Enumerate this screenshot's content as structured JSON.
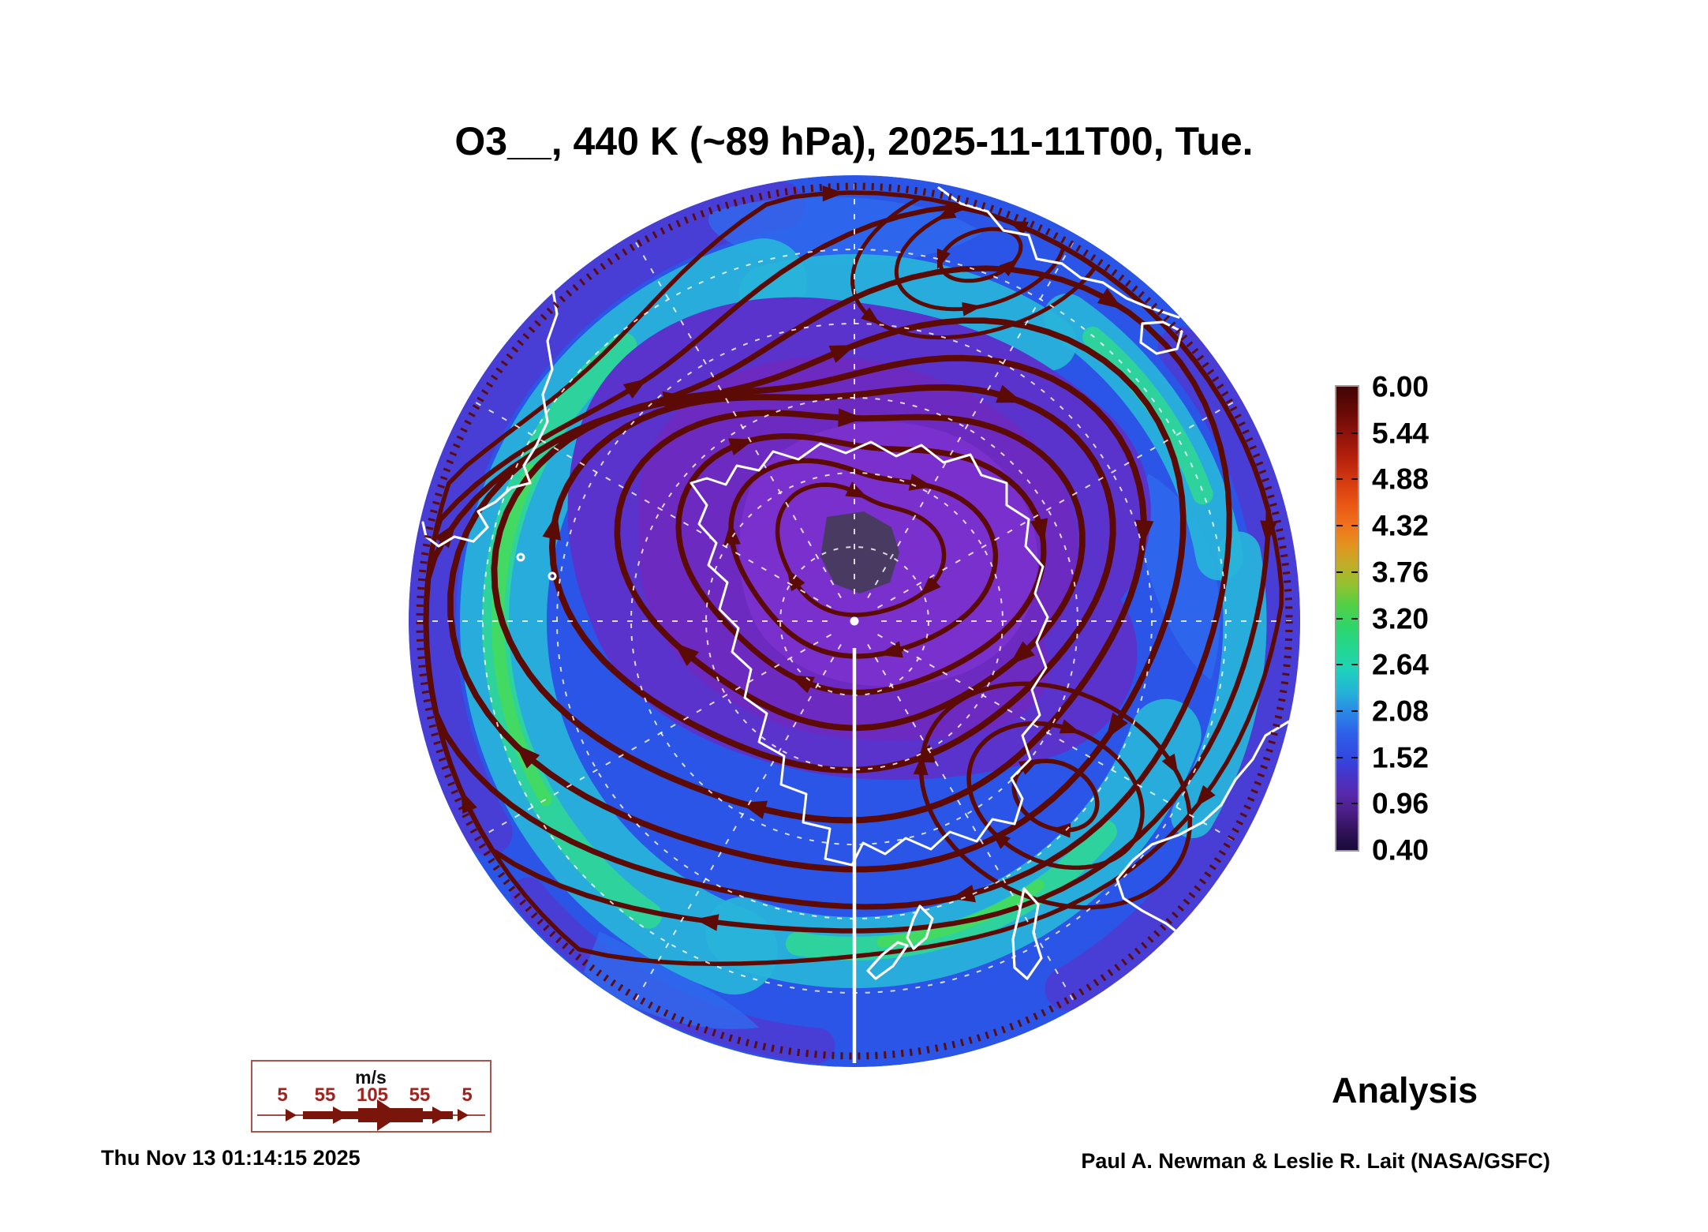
{
  "title": "O3__, 440 K (~89 hPa), 2025-11-11T00, Tue.",
  "colorbar": {
    "ticks": [
      "6.00",
      "5.44",
      "4.88",
      "4.32",
      "3.76",
      "3.20",
      "2.64",
      "2.08",
      "1.52",
      "0.96",
      "0.40"
    ],
    "min": 0.4,
    "max": 6.0,
    "gradient_stops": [
      {
        "p": 0.0,
        "c": "#400404"
      },
      {
        "p": 0.05,
        "c": "#650a06"
      },
      {
        "p": 0.1,
        "c": "#8c120a"
      },
      {
        "p": 0.15,
        "c": "#b2200c"
      },
      {
        "p": 0.2,
        "c": "#d23810"
      },
      {
        "p": 0.25,
        "c": "#e85414"
      },
      {
        "p": 0.3,
        "c": "#ef731c"
      },
      {
        "p": 0.34,
        "c": "#e49220"
      },
      {
        "p": 0.38,
        "c": "#c4ab28"
      },
      {
        "p": 0.43,
        "c": "#90c232"
      },
      {
        "p": 0.47,
        "c": "#52d044"
      },
      {
        "p": 0.52,
        "c": "#2ed56c"
      },
      {
        "p": 0.57,
        "c": "#22d795"
      },
      {
        "p": 0.61,
        "c": "#1fd2ba"
      },
      {
        "p": 0.66,
        "c": "#24b2d8"
      },
      {
        "p": 0.7,
        "c": "#2a8ae6"
      },
      {
        "p": 0.75,
        "c": "#2e5ee8"
      },
      {
        "p": 0.8,
        "c": "#3348e0"
      },
      {
        "p": 0.84,
        "c": "#4634c8"
      },
      {
        "p": 0.88,
        "c": "#5829aa"
      },
      {
        "p": 0.92,
        "c": "#4a1d84"
      },
      {
        "p": 0.96,
        "c": "#31115a"
      },
      {
        "p": 1.0,
        "c": "#190b38"
      }
    ]
  },
  "wind_legend": {
    "units": "m/s",
    "values": [
      "5",
      "55",
      "105",
      "55",
      "5"
    ]
  },
  "annotations": {
    "mode": "Analysis"
  },
  "footer": {
    "generated": "Thu Nov 13 01:14:15 2025",
    "credit": "Paul A. Newman & Leslie R. Lait (NASA/GSFC)"
  },
  "palette": {
    "ocean_blue": "#2b55e6",
    "light_blue": "#2f6cee",
    "rim_violet": "#4b3cd4",
    "collar_cyan": "#28b4da",
    "collar_teal": "#2fd598",
    "collar_green": "#44da5e",
    "vortex_violet": "#5a32cc",
    "vortex_purple": "#6c2ac0",
    "vortex_deep": "#7a30cc",
    "vortex_core": "#493a62",
    "streamline_maroon": "#5b0a06",
    "coastline": "#ffffff",
    "legend_brick": "#7a150c",
    "legend_text": "#9e2420",
    "legend_border": "#a85550"
  },
  "chart_data": {
    "type": "heatmap",
    "title": "O3__, 440 K (~89 hPa), 2025-11-11T00, Tue.",
    "field": "O3",
    "level": "440 K (~89 hPa)",
    "valid_time": "2025-11-11T00",
    "weekday": "Tue.",
    "projection": "southern-hemisphere polar view",
    "colorbar": {
      "min": 0.4,
      "max": 6.0,
      "tick_values": [
        6.0,
        5.44,
        4.88,
        4.32,
        3.76,
        3.2,
        2.64,
        2.08,
        1.52,
        0.96,
        0.4
      ],
      "orientation": "vertical",
      "position": "right"
    },
    "wind_legend": {
      "units": "m/s",
      "values": [
        5,
        55,
        105,
        55,
        5
      ]
    },
    "overlays": [
      "wind streamlines with arrowheads",
      "coastlines",
      "latitude-longitude graticule"
    ],
    "status_label": "Analysis",
    "generated_timestamp": "Thu Nov 13 01:14:15 2025",
    "credit": "Paul A. Newman & Leslie R. Lait (NASA/GSFC)"
  }
}
